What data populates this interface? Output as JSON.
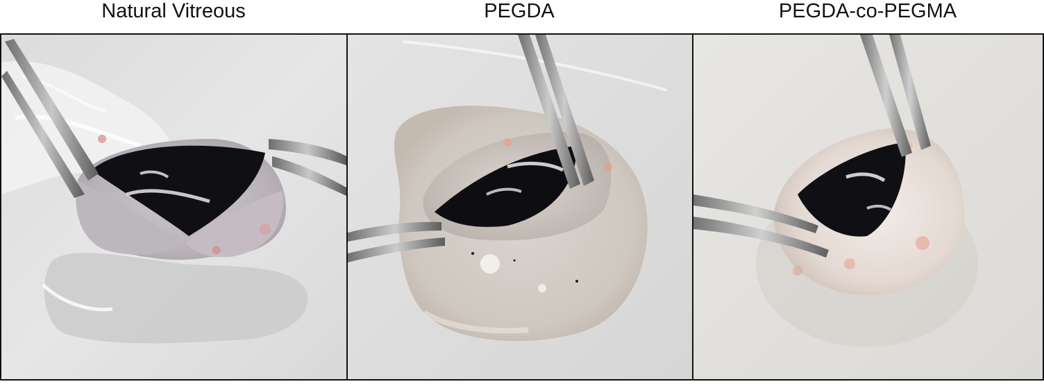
{
  "figure": {
    "panels": [
      {
        "title": "Natural Vitreous"
      },
      {
        "title": "PEGDA"
      },
      {
        "title": "PEGDA-co-PEGMA"
      }
    ]
  }
}
